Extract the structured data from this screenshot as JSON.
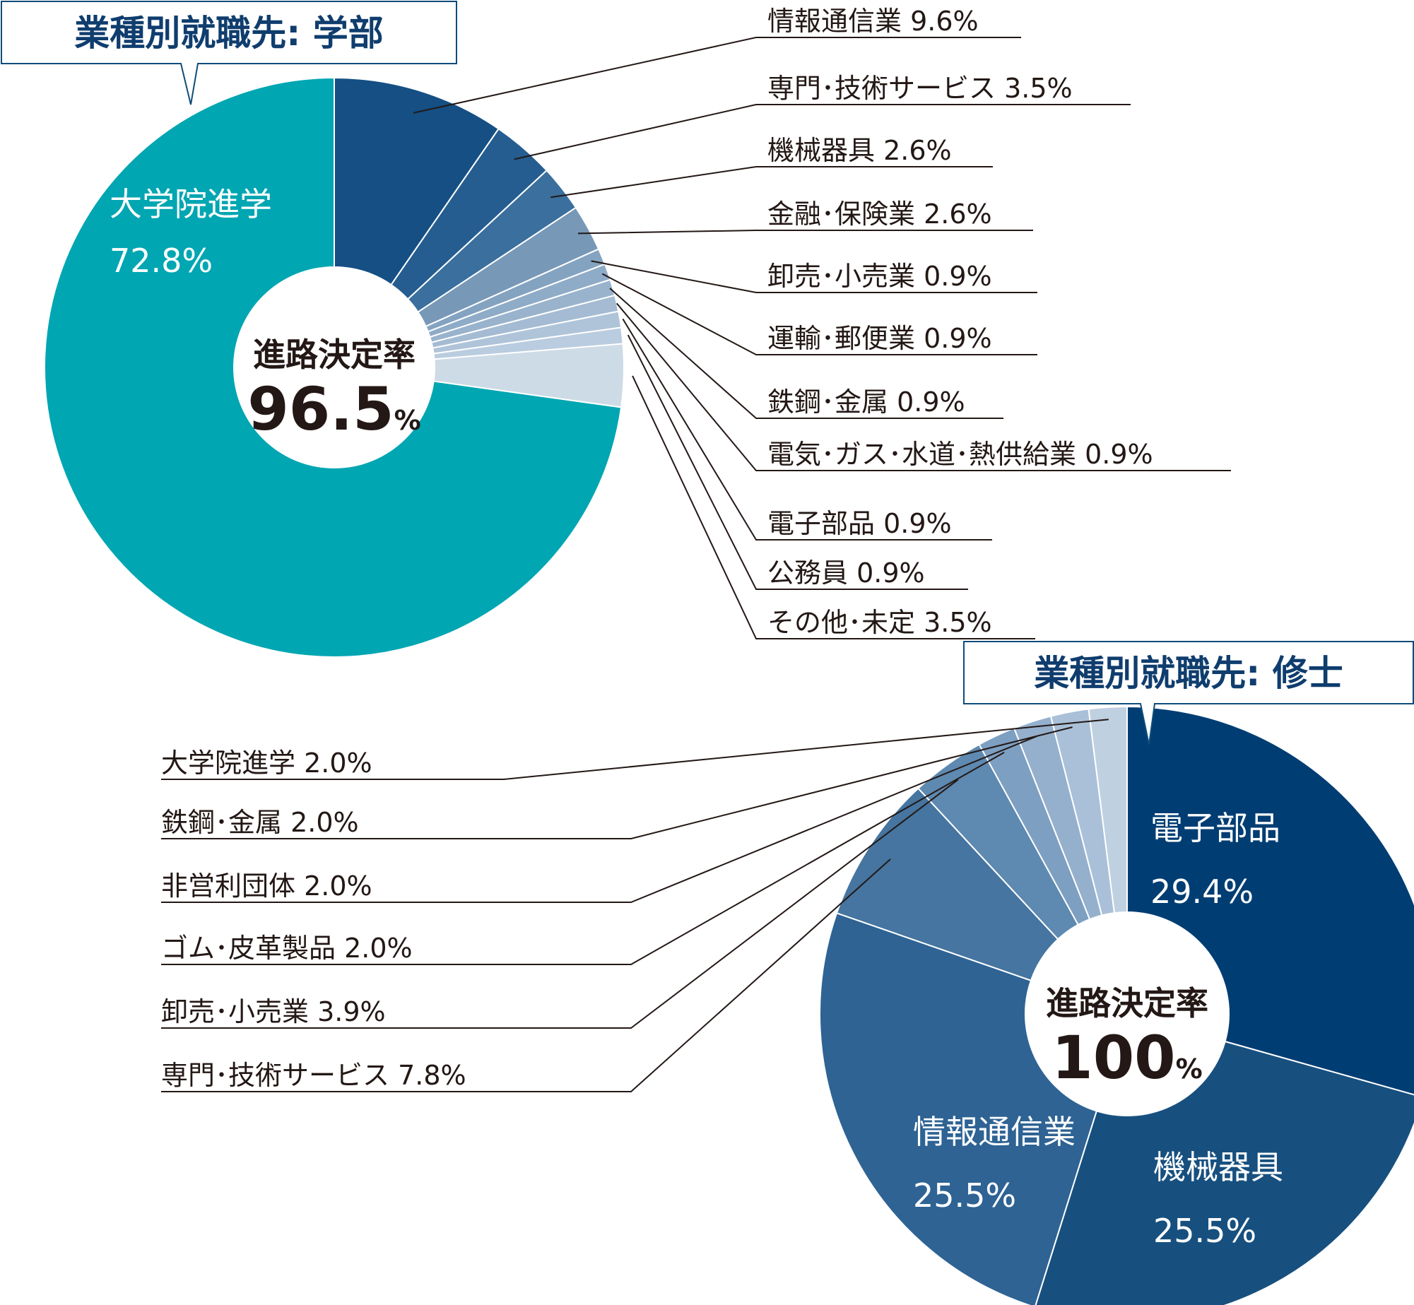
{
  "chart_data": [
    {
      "type": "pie",
      "title": "業種別就職先: 学部",
      "center": {
        "label": "進路決定率",
        "value": "96.5",
        "unit": "%"
      },
      "series": [
        {
          "name": "情報通信業",
          "value": 9.6,
          "label": "情報通信業 9.6%",
          "color": "#154f84"
        },
        {
          "name": "専門・技術サービス",
          "value": 3.5,
          "label": "専門･技術サービス 3.5%",
          "color": "#255d90"
        },
        {
          "name": "機械器具",
          "value": 2.6,
          "label": "機械器具 2.6%",
          "color": "#3a6f9e"
        },
        {
          "name": "金融・保険業",
          "value": 2.6,
          "label": "金融･保険業 2.6%",
          "color": "#7898b8"
        },
        {
          "name": "卸売・小売業",
          "value": 0.9,
          "label": "卸売･小売業 0.9%",
          "color": "#84a3c1"
        },
        {
          "name": "運輸・郵便業",
          "value": 0.9,
          "label": "運輸･郵便業 0.9%",
          "color": "#8eabc7"
        },
        {
          "name": "鉄鋼・金属",
          "value": 0.9,
          "label": "鉄鋼･金属 0.9%",
          "color": "#99b3cd"
        },
        {
          "name": "電気・ガス・水道・熱供給業",
          "value": 0.9,
          "label": "電気･ガス･水道･熱供給業 0.9%",
          "color": "#a4bbd3"
        },
        {
          "name": "電子部品",
          "value": 0.9,
          "label": "電子部品 0.9%",
          "color": "#afc4d9"
        },
        {
          "name": "公務員",
          "value": 0.9,
          "label": "公務員 0.9%",
          "color": "#baccdf"
        },
        {
          "name": "その他・未定",
          "value": 3.5,
          "label": "その他･未定 3.5%",
          "color": "#cddbe7"
        },
        {
          "name": "大学院進学",
          "value": 72.8,
          "label": "",
          "color": "#00a6b2",
          "inner_label": [
            "大学院進学",
            "72.8%"
          ]
        }
      ]
    },
    {
      "type": "pie",
      "title": "業種別就職先: 修士",
      "center": {
        "label": "進路決定率",
        "value": "100",
        "unit": "%"
      },
      "series": [
        {
          "name": "電子部品",
          "value": 29.4,
          "label": "",
          "color": "#003d73",
          "inner_label": [
            "電子部品",
            "29.4%"
          ]
        },
        {
          "name": "機械器具",
          "value": 25.5,
          "label": "",
          "color": "#17507f",
          "inner_label": [
            "機械器具",
            "25.5%"
          ]
        },
        {
          "name": "情報通信業",
          "value": 25.5,
          "label": "",
          "color": "#2e6394",
          "inner_label": [
            "情報通信業",
            "25.5%"
          ]
        },
        {
          "name": "専門・技術サービス",
          "value": 7.8,
          "label": "専門･技術サービス 7.8%",
          "color": "#4575a0"
        },
        {
          "name": "卸売・小売業",
          "value": 3.9,
          "label": "卸売･小売業 3.9%",
          "color": "#5e89b0"
        },
        {
          "name": "ゴム・皮革製品",
          "value": 2.0,
          "label": "ゴム･皮革製品 2.0%",
          "color": "#7d9fc1"
        },
        {
          "name": "非営利団体",
          "value": 2.0,
          "label": "非営利団体 2.0%",
          "color": "#94b0cd"
        },
        {
          "name": "鉄鋼・金属",
          "value": 2.0,
          "label": "鉄鋼･金属 2.0%",
          "color": "#a9c0d8"
        },
        {
          "name": "大学院進学",
          "value": 2.0,
          "label": "大学院進学 2.0%",
          "color": "#bfd0e1",
          "label_color": "#00a6b2"
        }
      ]
    }
  ]
}
